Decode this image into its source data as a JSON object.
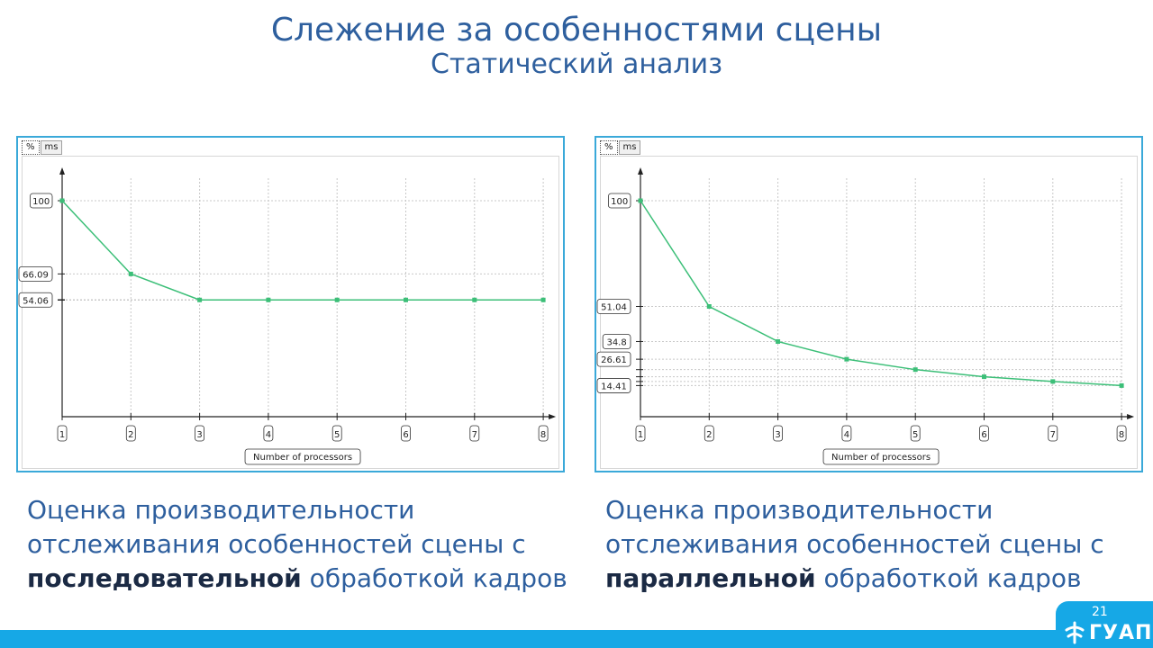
{
  "slide": {
    "title": "Слежение за особенностями сцены",
    "subtitle": "Статический анализ",
    "page_number": "21",
    "logo_text": "ГУАП",
    "accent_color": "#16a8e6",
    "title_color": "#2e5f9e"
  },
  "captions": {
    "left": {
      "line1": "Оценка производительности",
      "line2": "отслеживания особенностей сцены с",
      "bold": "последовательной",
      "tail": " обработкой кадров"
    },
    "right": {
      "line1": "Оценка производительности",
      "line2": "отслеживания особенностей сцены с",
      "bold": "параллельной",
      "tail": " обработкой кадров"
    }
  },
  "chart_data": [
    {
      "type": "line",
      "tabs": [
        "%",
        "ms"
      ],
      "active_tab": "%",
      "xlabel": "Number of processors",
      "ylabel": "",
      "x": [
        1,
        2,
        3,
        4,
        5,
        6,
        7,
        8
      ],
      "series": [
        {
          "values": [
            100,
            66.09,
            54.06,
            54.06,
            54.06,
            54.06,
            54.06,
            54.06
          ],
          "color": "#3cbf78"
        }
      ],
      "y_tick_labels": [
        "100",
        "66.09",
        "54.06"
      ],
      "y_tick_values": [
        100,
        66.09,
        54.06
      ],
      "ylim": [
        0,
        100
      ],
      "grid": true
    },
    {
      "type": "line",
      "tabs": [
        "%",
        "ms"
      ],
      "active_tab": "%",
      "xlabel": "Number of processors",
      "ylabel": "",
      "x": [
        1,
        2,
        3,
        4,
        5,
        6,
        7,
        8
      ],
      "series": [
        {
          "values": [
            100,
            51.04,
            34.8,
            26.61,
            21.8,
            18.5,
            16.3,
            14.41
          ],
          "color": "#3cbf78"
        }
      ],
      "y_tick_labels": [
        "100",
        "51.04",
        "34.8",
        "26.61",
        "14.41"
      ],
      "y_tick_values": [
        100,
        51.04,
        34.8,
        26.61,
        14.41
      ],
      "ylim": [
        0,
        100
      ],
      "grid": true
    }
  ]
}
